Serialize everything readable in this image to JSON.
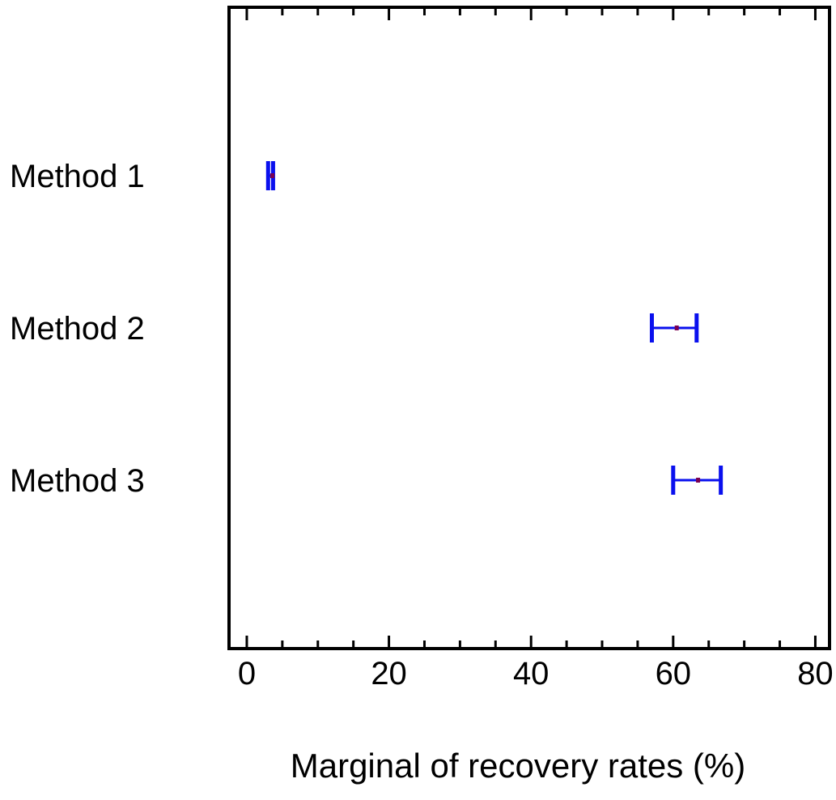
{
  "chart_data": {
    "type": "errorbar",
    "xlabel": "Marginal of recovery rates (%)",
    "xlim": [
      -2.5,
      82
    ],
    "x_ticks": [
      0,
      20,
      40,
      60,
      80
    ],
    "x_tick_labels": [
      "0",
      "20",
      "40",
      "60",
      "80"
    ],
    "categories": [
      "Method 1",
      "Method 2",
      "Method 3"
    ],
    "points": [
      {
        "category": "Method 1",
        "value": 3.6,
        "low": 3.0,
        "high": 3.7
      },
      {
        "category": "Method 2",
        "value": 60.5,
        "low": 57.0,
        "high": 63.3
      },
      {
        "category": "Method 3",
        "value": 63.5,
        "low": 60.0,
        "high": 66.7
      }
    ],
    "colors": {
      "bar": "#0a10ee",
      "point": "#7a0050",
      "axis": "#000000"
    },
    "grid": false,
    "legend": "none"
  }
}
